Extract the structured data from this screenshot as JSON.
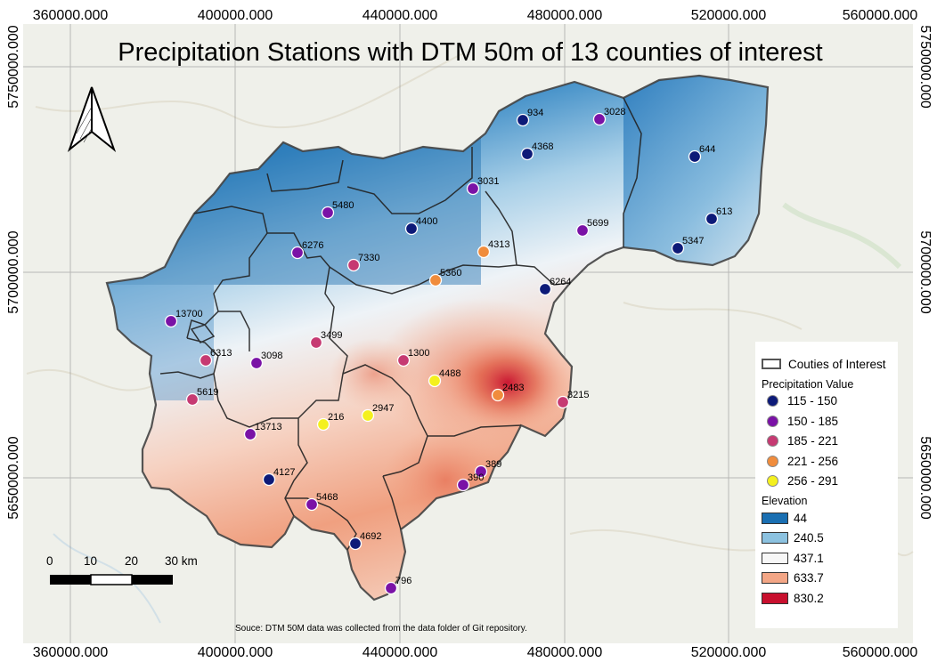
{
  "title": "Precipitation Stations with DTM 50m of 13 counties of interest",
  "source_note": "Souce: DTM 50M data was collected from the data folder of Git repository.",
  "x_ticks": [
    "360000.000",
    "400000.000",
    "440000.000",
    "480000.000",
    "520000.000",
    "560000.000"
  ],
  "y_ticks": [
    "5750000.000",
    "5700000.000",
    "5650000.000"
  ],
  "scale_bar": {
    "labels": [
      "0",
      "10",
      "20",
      "30 km"
    ]
  },
  "legend": {
    "county_label": "Couties of Interest",
    "precip_title": "Precipitation Value",
    "precip_classes": [
      {
        "label": "115 - 150",
        "color": "#0d1a78"
      },
      {
        "label": "150 - 185",
        "color": "#7a12a6"
      },
      {
        "label": "185 - 221",
        "color": "#c63a72"
      },
      {
        "label": "221 - 256",
        "color": "#f08c3c"
      },
      {
        "label": "256 - 291",
        "color": "#f4f01e"
      }
    ],
    "elev_title": "Elevation",
    "elev_classes": [
      {
        "label": "44",
        "color": "#1a6fb2"
      },
      {
        "label": "240.5",
        "color": "#8cc2e0"
      },
      {
        "label": "437.1",
        "color": "#f7f7f7"
      },
      {
        "label": "633.7",
        "color": "#f3a686"
      },
      {
        "label": "830.2",
        "color": "#c8102e"
      }
    ]
  },
  "stations": [
    {
      "label": "934",
      "cls": 0
    },
    {
      "label": "3028",
      "cls": 1
    },
    {
      "label": "4368",
      "cls": 0
    },
    {
      "label": "644",
      "cls": 0
    },
    {
      "label": "3031",
      "cls": 1
    },
    {
      "label": "613",
      "cls": 0
    },
    {
      "label": "5480",
      "cls": 1
    },
    {
      "label": "4400",
      "cls": 0
    },
    {
      "label": "5699",
      "cls": 1
    },
    {
      "label": "4313",
      "cls": 3
    },
    {
      "label": "5347",
      "cls": 0
    },
    {
      "label": "6276",
      "cls": 1
    },
    {
      "label": "7330",
      "cls": 2
    },
    {
      "label": "5360",
      "cls": 3
    },
    {
      "label": "6264",
      "cls": 0
    },
    {
      "label": "13700",
      "cls": 1
    },
    {
      "label": "3499",
      "cls": 2
    },
    {
      "label": "6313",
      "cls": 2
    },
    {
      "label": "3098",
      "cls": 1
    },
    {
      "label": "1300",
      "cls": 2
    },
    {
      "label": "4488",
      "cls": 4
    },
    {
      "label": "2483",
      "cls": 3
    },
    {
      "label": "3215",
      "cls": 2
    },
    {
      "label": "5619",
      "cls": 2
    },
    {
      "label": "216",
      "cls": 4
    },
    {
      "label": "2947",
      "cls": 4
    },
    {
      "label": "13713",
      "cls": 1
    },
    {
      "label": "389",
      "cls": 1
    },
    {
      "label": "4127",
      "cls": 0
    },
    {
      "label": "390",
      "cls": 1
    },
    {
      "label": "5468",
      "cls": 1
    },
    {
      "label": "4692",
      "cls": 0
    },
    {
      "label": "796",
      "cls": 1
    }
  ]
}
